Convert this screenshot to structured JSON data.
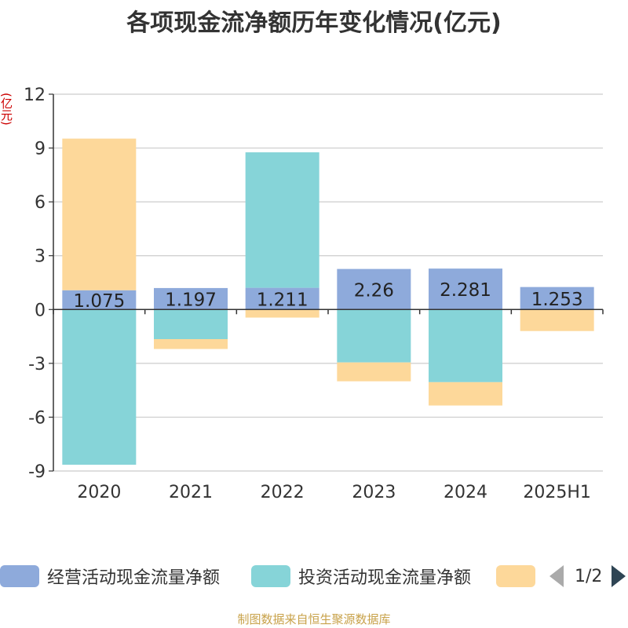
{
  "chart_data": {
    "type": "bar",
    "stacked": true,
    "title": "各项现金流净额历年变化情况(亿元)",
    "ylabel": "(亿元)",
    "ylim": [
      -9,
      12
    ],
    "yticks": [
      12,
      9,
      6,
      3,
      0,
      -3,
      -6,
      -9
    ],
    "categories": [
      "2020",
      "2021",
      "2022",
      "2023",
      "2024",
      "2025H1"
    ],
    "grid": true,
    "series": [
      {
        "name": "经营活动现金流量净额",
        "color": "#8eaadb",
        "values": [
          1.075,
          1.197,
          1.211,
          2.26,
          2.281,
          1.253
        ],
        "labels": [
          "1.075",
          "1.197",
          "1.211",
          "2.26",
          "2.281",
          "1.253"
        ]
      },
      {
        "name": "投资活动现金流量净额",
        "color": "#86d4d8",
        "values": [
          -8.65,
          -1.65,
          7.55,
          -2.95,
          -4.05,
          0
        ]
      },
      {
        "name": "",
        "color": "#fdd89a",
        "values": [
          8.45,
          -0.55,
          -0.45,
          -1.05,
          -1.3,
          -1.2
        ]
      }
    ]
  },
  "legend": {
    "items": [
      {
        "label": "经营活动现金流量净额",
        "color": "#8eaadb"
      },
      {
        "label": "投资活动现金流量净额",
        "color": "#86d4d8"
      },
      {
        "label": "",
        "color": "#fdd89a"
      }
    ],
    "page": "1/2"
  },
  "footer": {
    "source": "制图数据来自恒生聚源数据库"
  }
}
